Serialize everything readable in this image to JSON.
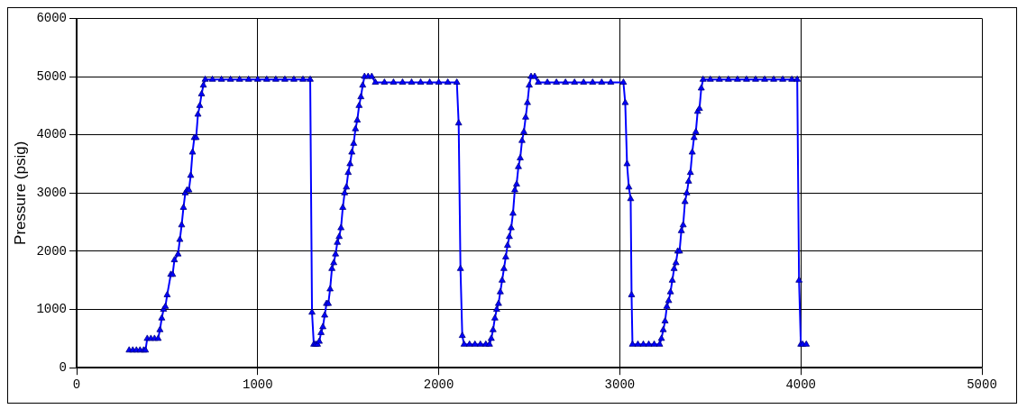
{
  "chart_data": {
    "type": "line",
    "ylabel": "Pressure (psig)",
    "xlim": [
      0,
      5000
    ],
    "xticks": [
      0,
      1000,
      2000,
      3000,
      4000,
      5000
    ],
    "ylim": [
      0,
      6000
    ],
    "yticks": [
      0,
      1000,
      2000,
      3000,
      4000,
      5000,
      6000
    ],
    "grid": true,
    "legend": false,
    "marker": "triangle",
    "line_style": "solid",
    "series": [
      {
        "color": "#0000ff",
        "x": [
          290,
          310,
          330,
          350,
          370,
          380,
          390,
          410,
          430,
          450,
          460,
          470,
          480,
          490,
          500,
          520,
          530,
          540,
          560,
          570,
          580,
          590,
          600,
          610,
          620,
          630,
          640,
          650,
          660,
          670,
          680,
          690,
          700,
          710,
          750,
          800,
          850,
          900,
          950,
          1000,
          1050,
          1100,
          1150,
          1200,
          1250,
          1290,
          1300,
          1310,
          1320,
          1330,
          1340,
          1350,
          1360,
          1370,
          1380,
          1390,
          1400,
          1410,
          1420,
          1430,
          1440,
          1450,
          1460,
          1470,
          1480,
          1490,
          1500,
          1510,
          1520,
          1530,
          1540,
          1550,
          1560,
          1570,
          1580,
          1590,
          1610,
          1630,
          1650,
          1700,
          1750,
          1800,
          1850,
          1900,
          1950,
          2000,
          2050,
          2100,
          2110,
          2120,
          2130,
          2140,
          2170,
          2200,
          2230,
          2260,
          2280,
          2290,
          2300,
          2310,
          2320,
          2330,
          2340,
          2350,
          2360,
          2370,
          2380,
          2390,
          2400,
          2410,
          2420,
          2430,
          2440,
          2450,
          2460,
          2470,
          2480,
          2490,
          2500,
          2510,
          2530,
          2550,
          2600,
          2650,
          2700,
          2750,
          2800,
          2850,
          2900,
          2950,
          3020,
          3030,
          3040,
          3050,
          3060,
          3065,
          3070,
          3100,
          3130,
          3160,
          3190,
          3220,
          3230,
          3240,
          3250,
          3260,
          3270,
          3280,
          3290,
          3300,
          3310,
          3320,
          3330,
          3340,
          3350,
          3360,
          3370,
          3380,
          3390,
          3400,
          3410,
          3420,
          3430,
          3440,
          3450,
          3460,
          3500,
          3550,
          3600,
          3650,
          3700,
          3750,
          3800,
          3850,
          3900,
          3950,
          3980,
          3990,
          4000,
          4010,
          4030
        ],
        "values": [
          300,
          300,
          300,
          300,
          300,
          300,
          500,
          500,
          500,
          500,
          650,
          850,
          1000,
          1050,
          1250,
          1600,
          1600,
          1850,
          1950,
          2200,
          2450,
          2750,
          3000,
          3050,
          3050,
          3300,
          3700,
          3950,
          3950,
          4350,
          4500,
          4700,
          4850,
          4950,
          4950,
          4950,
          4950,
          4950,
          4950,
          4950,
          4950,
          4950,
          4950,
          4950,
          4950,
          4950,
          950,
          400,
          400,
          400,
          450,
          600,
          700,
          900,
          1100,
          1100,
          1350,
          1700,
          1800,
          1950,
          2150,
          2250,
          2400,
          2750,
          3000,
          3100,
          3350,
          3500,
          3700,
          3850,
          4100,
          4250,
          4500,
          4650,
          4850,
          5000,
          5000,
          5000,
          4900,
          4900,
          4900,
          4900,
          4900,
          4900,
          4900,
          4900,
          4900,
          4900,
          4200,
          1700,
          550,
          400,
          400,
          400,
          400,
          400,
          400,
          500,
          650,
          850,
          1000,
          1100,
          1300,
          1500,
          1700,
          1900,
          2100,
          2250,
          2400,
          2650,
          3050,
          3150,
          3450,
          3600,
          3900,
          4050,
          4300,
          4550,
          4850,
          5000,
          5000,
          4900,
          4900,
          4900,
          4900,
          4900,
          4900,
          4900,
          4900,
          4900,
          4900,
          4550,
          3500,
          3100,
          2900,
          1250,
          400,
          400,
          400,
          400,
          400,
          400,
          500,
          650,
          800,
          1050,
          1150,
          1300,
          1500,
          1700,
          1800,
          2000,
          2000,
          2350,
          2450,
          2850,
          3000,
          3200,
          3350,
          3700,
          3950,
          4050,
          4400,
          4450,
          4800,
          4950,
          4950,
          4950,
          4950,
          4950,
          4950,
          4950,
          4950,
          4950,
          4950,
          4950,
          4950,
          1500,
          400,
          400,
          400
        ]
      }
    ]
  }
}
